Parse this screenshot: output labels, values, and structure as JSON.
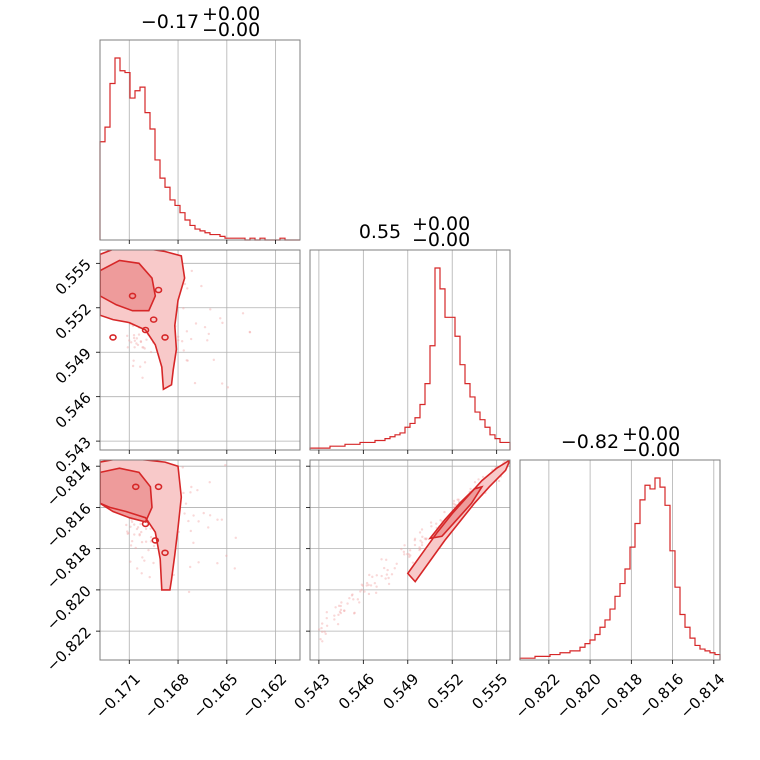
{
  "chart_data": {
    "type": "corner",
    "color": "#d62728",
    "params": [
      {
        "title_value": "−0.17",
        "title_plus": "+0.00",
        "title_minus": "−0.00",
        "range": [
          -0.1728,
          -0.1605
        ],
        "ticks": [
          -0.171,
          -0.168,
          -0.165,
          -0.162
        ],
        "tick_labels": [
          "−0.171",
          "−0.168",
          "−0.165",
          "−0.162"
        ],
        "hist": [
          54,
          62,
          86,
          100,
          93,
          92,
          78,
          82,
          84,
          70,
          61,
          44,
          34,
          29,
          22,
          19,
          15,
          11,
          8,
          6,
          5,
          4,
          3,
          3,
          2,
          1,
          1,
          1,
          1,
          0,
          1,
          0,
          1,
          0,
          0,
          0,
          1,
          0,
          0,
          0
        ]
      },
      {
        "title_value": "0.55",
        "title_plus": "+0.00",
        "title_minus": "−0.00",
        "range": [
          0.5424,
          0.5559
        ],
        "ticks": [
          0.543,
          0.546,
          0.549,
          0.552,
          0.555
        ],
        "tick_labels": [
          "0.543",
          "0.546",
          "0.549",
          "0.552",
          "0.555"
        ],
        "hist": [
          1,
          1,
          1,
          1,
          2,
          2,
          2,
          3,
          3,
          3,
          4,
          4,
          4,
          5,
          5,
          6,
          7,
          8,
          9,
          12,
          14,
          17,
          24,
          35,
          55,
          96,
          85,
          70,
          70,
          60,
          45,
          35,
          28,
          20,
          16,
          12,
          8,
          6,
          4,
          4
        ]
      },
      {
        "title_value": "−0.82",
        "title_plus": "+0.00",
        "title_minus": "−0.00",
        "range": [
          -0.8234,
          -0.8137
        ],
        "ticks": [
          -0.822,
          -0.82,
          -0.818,
          -0.816,
          -0.814
        ],
        "tick_labels": [
          "−0.822",
          "−0.820",
          "−0.818",
          "−0.816",
          "−0.814"
        ],
        "hist": [
          1,
          1,
          1,
          2,
          2,
          2,
          3,
          3,
          4,
          4,
          5,
          5,
          7,
          9,
          11,
          14,
          18,
          22,
          28,
          35,
          42,
          50,
          62,
          75,
          88,
          96,
          94,
          100,
          95,
          85,
          60,
          40,
          25,
          18,
          12,
          8,
          6,
          5,
          4,
          3
        ]
      }
    ],
    "pair_0_1": {
      "centers": [
        [
          -0.1717,
          0.553
        ],
        [
          -0.1705,
          0.5522
        ],
        [
          -0.1695,
          0.5515
        ],
        [
          -0.1688,
          0.5495
        ]
      ],
      "outer_contour": [
        [
          -0.1728,
          0.5556
        ],
        [
          -0.1714,
          0.5562
        ],
        [
          -0.17,
          0.556
        ],
        [
          -0.1688,
          0.5558
        ],
        [
          -0.1678,
          0.5555
        ],
        [
          -0.1676,
          0.554
        ],
        [
          -0.168,
          0.5525
        ],
        [
          -0.1682,
          0.5508
        ],
        [
          -0.1681,
          0.5492
        ],
        [
          -0.1683,
          0.5478
        ],
        [
          -0.1684,
          0.5468
        ],
        [
          -0.1689,
          0.5465
        ],
        [
          -0.169,
          0.548
        ],
        [
          -0.1694,
          0.5495
        ],
        [
          -0.17,
          0.5505
        ],
        [
          -0.171,
          0.551
        ],
        [
          -0.172,
          0.5512
        ],
        [
          -0.1728,
          0.5515
        ]
      ],
      "inner_contour": [
        [
          -0.1728,
          0.5545
        ],
        [
          -0.1716,
          0.5552
        ],
        [
          -0.1704,
          0.555
        ],
        [
          -0.1696,
          0.554
        ],
        [
          -0.1694,
          0.5528
        ],
        [
          -0.1698,
          0.5518
        ],
        [
          -0.1708,
          0.5518
        ],
        [
          -0.1718,
          0.5522
        ],
        [
          -0.1728,
          0.5528
        ]
      ]
    },
    "pair_0_2": {
      "outer_contour": [
        [
          -0.1728,
          -0.8138
        ],
        [
          -0.1714,
          -0.8136
        ],
        [
          -0.17,
          -0.8137
        ],
        [
          -0.1688,
          -0.8138
        ],
        [
          -0.168,
          -0.814
        ],
        [
          -0.1678,
          -0.8155
        ],
        [
          -0.168,
          -0.817
        ],
        [
          -0.1682,
          -0.8183
        ],
        [
          -0.1684,
          -0.8195
        ],
        [
          -0.1685,
          -0.82
        ],
        [
          -0.169,
          -0.82
        ],
        [
          -0.1691,
          -0.8185
        ],
        [
          -0.1694,
          -0.8172
        ],
        [
          -0.17,
          -0.8165
        ],
        [
          -0.1712,
          -0.8162
        ],
        [
          -0.1722,
          -0.816
        ],
        [
          -0.1728,
          -0.8158
        ]
      ],
      "inner_contour": [
        [
          -0.1728,
          -0.8143
        ],
        [
          -0.1716,
          -0.8141
        ],
        [
          -0.1704,
          -0.8143
        ],
        [
          -0.1697,
          -0.815
        ],
        [
          -0.1696,
          -0.816
        ],
        [
          -0.17,
          -0.8167
        ],
        [
          -0.171,
          -0.8165
        ],
        [
          -0.172,
          -0.8162
        ],
        [
          -0.1728,
          -0.8158
        ]
      ]
    },
    "pair_1_2": {
      "outer_contour": [
        [
          0.549,
          -0.8192
        ],
        [
          0.55,
          -0.8182
        ],
        [
          0.551,
          -0.8172
        ],
        [
          0.552,
          -0.8163
        ],
        [
          0.553,
          -0.8155
        ],
        [
          0.554,
          -0.8147
        ],
        [
          0.555,
          -0.8141
        ],
        [
          0.5559,
          -0.8137
        ],
        [
          0.5556,
          -0.8142
        ],
        [
          0.5545,
          -0.815
        ],
        [
          0.5535,
          -0.8158
        ],
        [
          0.5525,
          -0.8167
        ],
        [
          0.5515,
          -0.8176
        ],
        [
          0.5505,
          -0.8186
        ],
        [
          0.5495,
          -0.8196
        ]
      ],
      "inner_contour": [
        [
          0.5505,
          -0.8175
        ],
        [
          0.5515,
          -0.8166
        ],
        [
          0.5525,
          -0.8158
        ],
        [
          0.5535,
          -0.8151
        ],
        [
          0.554,
          -0.815
        ],
        [
          0.5533,
          -0.8158
        ],
        [
          0.5523,
          -0.8166
        ],
        [
          0.5513,
          -0.8174
        ]
      ]
    }
  }
}
